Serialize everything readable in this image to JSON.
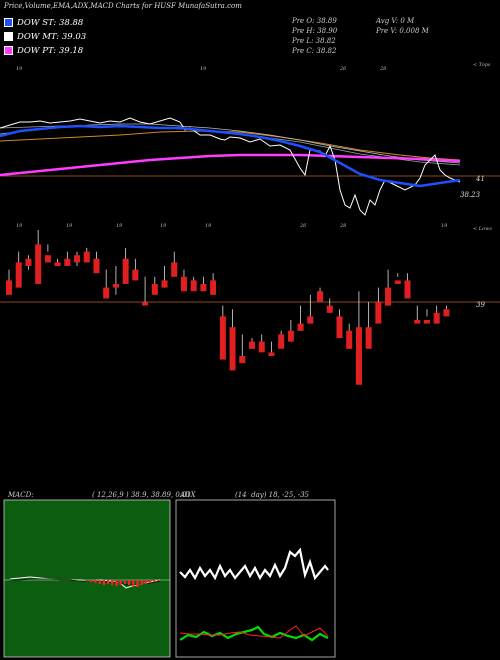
{
  "title": "Price,Volume,EMA,ADX,MACD Charts for HUSF MunafaSutra.com",
  "legend": [
    {
      "label": "DOW ST: 38.88",
      "color": "#1e4fff"
    },
    {
      "label": "DOW MT: 39.03",
      "color": "#ffffff"
    },
    {
      "label": "DOW PT: 39.18",
      "color": "#ff3cff"
    }
  ],
  "stats_left": [
    "Pre O: 38.89",
    "Pre H: 38.90",
    "Pre L: 38.82",
    "Pre C: 38.82"
  ],
  "stats_right": [
    "Avg V: 0 M",
    "Pre V: 0.008 M"
  ],
  "top_chart": {
    "corner_label": "< Tops",
    "level_label": "41",
    "last_label": "38.23",
    "date_labels": [
      "19",
      "19",
      "26",
      "28",
      "19",
      "28",
      "19"
    ]
  },
  "candle_chart": {
    "corner_label": "< Lows",
    "level_label": "39",
    "date_labels": [
      "19",
      "19",
      "19",
      "19",
      "19",
      "26",
      "28",
      "19"
    ]
  },
  "macd_panel": {
    "label": "MACD:",
    "params": "( 12,26,9 ) 38.9, 38.89, 0.01"
  },
  "adx_panel": {
    "label": "ADX",
    "params": "(14  day) 18, -25, -35"
  },
  "chart_data": {
    "type": "line",
    "title": "Price,Volume,EMA,ADX,MACD Charts for HUSF MunafaSutra.com",
    "series": [
      {
        "name": "DOW ST",
        "values": [
          38.88
        ]
      },
      {
        "name": "DOW MT",
        "values": [
          39.03
        ]
      },
      {
        "name": "DOW PT",
        "values": [
          39.18
        ]
      }
    ],
    "levels": {
      "top_reference": 41,
      "top_last": 38.23,
      "candle_reference": 39
    },
    "candles": [
      [
        39.6,
        39.9,
        39.3,
        39.2
      ],
      [
        40.1,
        40.4,
        39.9,
        39.4
      ],
      [
        40.2,
        40.3,
        39.9,
        40.0
      ],
      [
        40.6,
        41.0,
        40.5,
        39.5
      ],
      [
        40.3,
        40.6,
        40.4,
        40.1
      ],
      [
        40.1,
        40.2,
        40.1,
        40.0
      ],
      [
        40.2,
        40.4,
        40.1,
        40.0
      ],
      [
        40.3,
        40.4,
        40.0,
        40.1
      ],
      [
        40.4,
        40.5,
        40.2,
        40.1
      ],
      [
        40.2,
        40.4,
        39.9,
        39.8
      ],
      [
        39.4,
        39.9,
        39.2,
        39.1
      ],
      [
        39.5,
        40.0,
        39.2,
        39.4
      ],
      [
        40.2,
        40.5,
        39.7,
        39.5
      ],
      [
        39.9,
        40.2,
        39.6,
        39.6
      ],
      [
        39.0,
        39.7,
        39.0,
        38.9
      ],
      [
        39.5,
        39.7,
        39.3,
        39.2
      ],
      [
        39.6,
        40.0,
        39.4,
        39.4
      ],
      [
        40.1,
        40.4,
        39.8,
        39.7
      ],
      [
        39.7,
        39.9,
        39.4,
        39.3
      ],
      [
        39.6,
        39.7,
        39.5,
        39.3
      ],
      [
        39.5,
        39.7,
        39.5,
        39.3
      ],
      [
        39.6,
        39.8,
        39.2,
        39.2
      ],
      [
        38.6,
        38.9,
        37.6,
        37.4
      ],
      [
        38.3,
        38.8,
        37.4,
        37.1
      ],
      [
        37.5,
        38.1,
        37.4,
        37.3
      ],
      [
        37.9,
        38.0,
        37.8,
        37.7
      ],
      [
        37.9,
        38.1,
        37.8,
        37.6
      ],
      [
        37.6,
        37.9,
        37.6,
        37.5
      ],
      [
        38.1,
        38.2,
        37.8,
        37.7
      ],
      [
        38.2,
        38.5,
        37.9,
        37.9
      ],
      [
        38.4,
        38.9,
        38.3,
        38.2
      ],
      [
        38.6,
        39.2,
        38.5,
        38.4
      ],
      [
        39.3,
        39.4,
        39.0,
        39.0
      ],
      [
        38.9,
        39.1,
        38.7,
        38.7
      ],
      [
        38.6,
        38.8,
        38.1,
        38.0
      ],
      [
        38.2,
        38.4,
        38.0,
        37.7
      ],
      [
        38.3,
        39.3,
        37.5,
        36.7
      ],
      [
        38.3,
        39.0,
        38.0,
        37.7
      ],
      [
        39.0,
        39.4,
        38.8,
        38.4
      ],
      [
        39.4,
        39.9,
        39.0,
        38.9
      ],
      [
        39.6,
        39.8,
        39.7,
        39.5
      ],
      [
        39.6,
        39.8,
        39.3,
        39.1
      ],
      [
        38.5,
        38.9,
        38.5,
        38.4
      ],
      [
        38.5,
        38.8,
        38.6,
        38.4
      ],
      [
        38.7,
        38.9,
        38.5,
        38.4
      ],
      [
        38.8,
        38.9,
        38.8,
        38.6
      ]
    ]
  }
}
